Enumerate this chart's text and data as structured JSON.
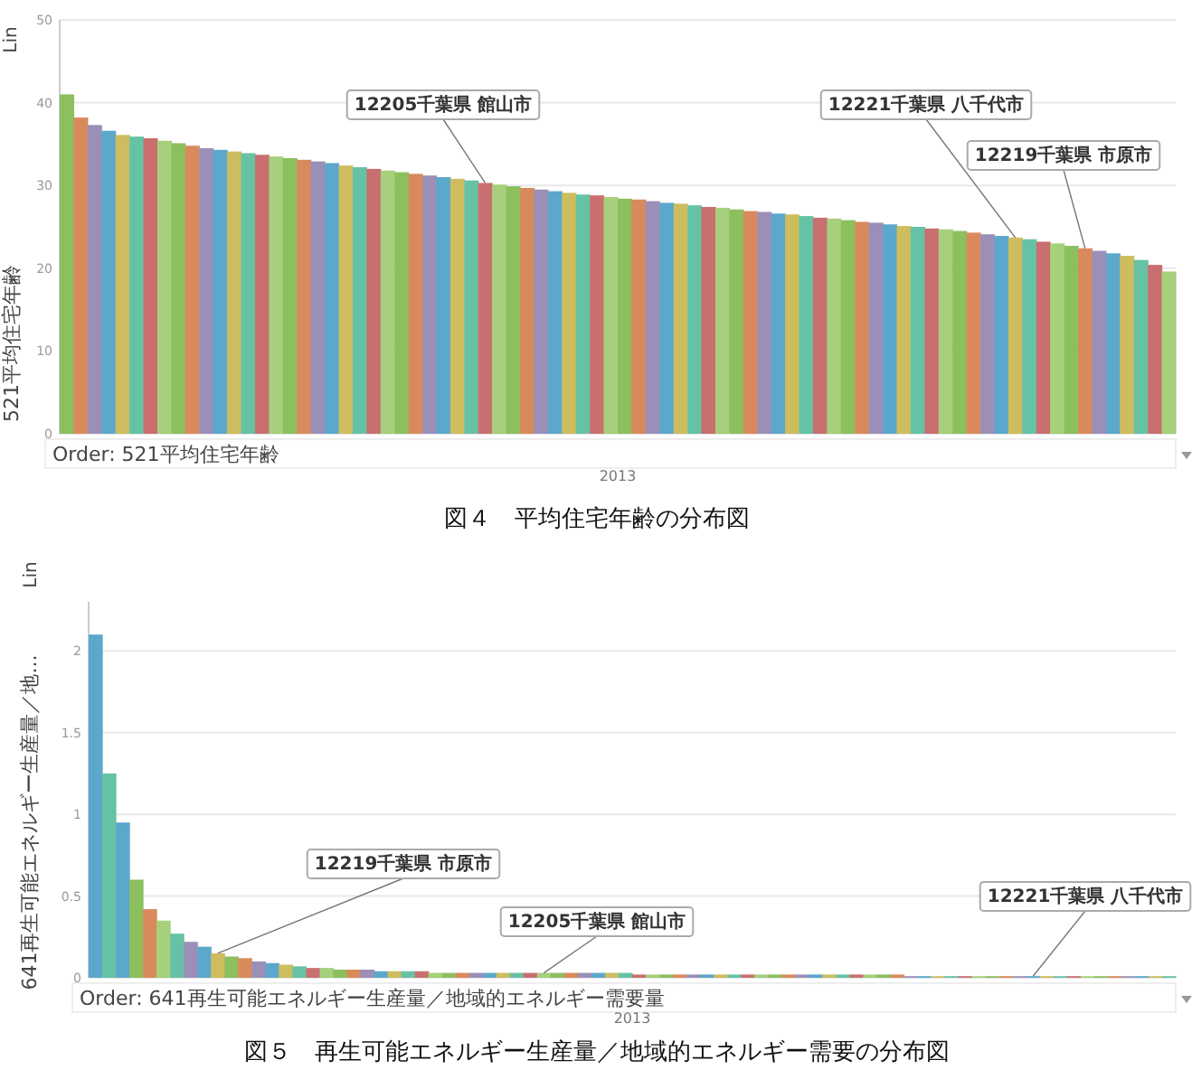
{
  "chart_data": [
    {
      "type": "bar",
      "title": "図４　平均住宅年齢の分布図",
      "xlabel": "2013",
      "ylabel": "521平均住宅年齢",
      "categories": [
        null,
        null,
        null,
        null,
        null,
        null,
        null,
        null,
        null,
        null,
        null,
        null,
        null,
        null,
        null,
        null,
        null,
        null,
        null,
        null,
        null,
        null,
        null,
        null,
        null,
        null,
        null,
        null,
        null,
        null,
        null,
        null,
        null,
        null,
        null,
        null,
        null,
        null,
        null,
        null,
        null,
        null,
        null,
        null,
        null,
        null,
        null,
        null,
        null,
        null,
        null,
        null,
        null,
        null,
        null,
        null,
        null,
        null,
        null,
        null,
        null,
        null,
        null,
        null,
        null,
        null,
        null,
        null,
        null,
        null,
        null,
        null,
        null,
        null,
        null,
        null,
        null,
        null,
        null,
        null
      ],
      "values": [
        41,
        38.2,
        37.3,
        36.6,
        36.1,
        35.9,
        35.7,
        35.4,
        35.1,
        34.8,
        34.5,
        34.3,
        34.1,
        33.9,
        33.7,
        33.5,
        33.3,
        33.1,
        32.9,
        32.7,
        32.4,
        32.2,
        32.0,
        31.8,
        31.6,
        31.4,
        31.2,
        31.0,
        30.8,
        30.6,
        30.3,
        30.1,
        29.9,
        29.7,
        29.5,
        29.3,
        29.1,
        28.9,
        28.8,
        28.6,
        28.4,
        28.3,
        28.1,
        27.9,
        27.8,
        27.6,
        27.4,
        27.3,
        27.1,
        26.9,
        26.8,
        26.6,
        26.5,
        26.3,
        26.1,
        26.0,
        25.8,
        25.6,
        25.5,
        25.3,
        25.1,
        25.0,
        24.8,
        24.7,
        24.5,
        24.3,
        24.1,
        23.9,
        23.7,
        23.5,
        23.2,
        23.0,
        22.7,
        22.4,
        22.1,
        21.8,
        21.5,
        21.0,
        20.4,
        19.6
      ],
      "colors": [
        "#8cbf5e",
        "#d98a5c",
        "#9b8fb8",
        "#5ca7cc",
        "#cdbd5e",
        "#66c2a5",
        "#c96f6f",
        "#a6d07c",
        "#8cbf5e",
        "#d98a5c",
        "#9b8fb8",
        "#5ca7cc",
        "#cdbd5e",
        "#66c2a5",
        "#c96f6f",
        "#a6d07c",
        "#8cbf5e",
        "#d98a5c",
        "#9b8fb8",
        "#5ca7cc",
        "#cdbd5e",
        "#66c2a5",
        "#c96f6f",
        "#a6d07c",
        "#8cbf5e",
        "#d98a5c",
        "#9b8fb8",
        "#5ca7cc",
        "#cdbd5e",
        "#66c2a5",
        "#c96f6f",
        "#a6d07c",
        "#8cbf5e",
        "#d98a5c",
        "#9b8fb8",
        "#5ca7cc",
        "#cdbd5e",
        "#66c2a5",
        "#c96f6f",
        "#a6d07c",
        "#8cbf5e",
        "#d98a5c",
        "#9b8fb8",
        "#5ca7cc",
        "#cdbd5e",
        "#66c2a5",
        "#c96f6f",
        "#a6d07c",
        "#8cbf5e",
        "#d98a5c",
        "#9b8fb8",
        "#5ca7cc",
        "#cdbd5e",
        "#66c2a5",
        "#c96f6f",
        "#a6d07c",
        "#8cbf5e",
        "#d98a5c",
        "#9b8fb8",
        "#5ca7cc",
        "#cdbd5e",
        "#66c2a5",
        "#c96f6f",
        "#a6d07c",
        "#8cbf5e",
        "#d98a5c",
        "#9b8fb8",
        "#5ca7cc",
        "#cdbd5e",
        "#66c2a5",
        "#c96f6f",
        "#a6d07c",
        "#8cbf5e",
        "#d98a5c",
        "#9b8fb8",
        "#5ca7cc",
        "#cdbd5e",
        "#66c2a5",
        "#c96f6f",
        "#a6d07c"
      ],
      "ylim": [
        0,
        50
      ],
      "yticks": [
        0,
        10,
        20,
        30,
        40,
        50
      ],
      "grid": "y",
      "annotations": [
        "12205千葉県 館山市",
        "12221千葉県 八千代市",
        "12219千葉県 市原市",
        "Order: 521平均住宅年齢",
        "Lin"
      ]
    },
    {
      "type": "bar",
      "title": "図５　再生可能エネルギー生産量／地域的エネルギー需要の分布図",
      "xlabel": "2013",
      "ylabel": "641再生可能エネルギー生産量／地...",
      "categories": [
        null,
        null,
        null,
        null,
        null,
        null,
        null,
        null,
        null,
        null,
        null,
        null,
        null,
        null,
        null,
        null,
        null,
        null,
        null,
        null,
        null,
        null,
        null,
        null,
        null,
        null,
        null,
        null,
        null,
        null,
        null,
        null,
        null,
        null,
        null,
        null,
        null,
        null,
        null,
        null,
        null,
        null,
        null,
        null,
        null,
        null,
        null,
        null,
        null,
        null,
        null,
        null,
        null,
        null,
        null,
        null,
        null,
        null,
        null,
        null,
        null,
        null,
        null,
        null,
        null,
        null,
        null,
        null,
        null,
        null,
        null,
        null,
        null,
        null,
        null,
        null,
        null,
        null,
        null,
        null
      ],
      "values": [
        2.1,
        1.25,
        0.95,
        0.6,
        0.42,
        0.35,
        0.27,
        0.22,
        0.19,
        0.15,
        0.13,
        0.12,
        0.1,
        0.09,
        0.08,
        0.07,
        0.06,
        0.06,
        0.05,
        0.05,
        0.05,
        0.04,
        0.04,
        0.04,
        0.04,
        0.03,
        0.03,
        0.03,
        0.03,
        0.03,
        0.03,
        0.03,
        0.03,
        0.03,
        0.03,
        0.03,
        0.03,
        0.03,
        0.03,
        0.03,
        0.02,
        0.02,
        0.02,
        0.02,
        0.02,
        0.02,
        0.02,
        0.02,
        0.02,
        0.02,
        0.02,
        0.02,
        0.02,
        0.02,
        0.02,
        0.02,
        0.02,
        0.02,
        0.02,
        0.02,
        0.01,
        0.01,
        0.01,
        0.01,
        0.01,
        0.01,
        0.01,
        0.01,
        0.01,
        0.01,
        0.01,
        0.01,
        0.01,
        0.01,
        0.01,
        0.01,
        0.01,
        0.01,
        0.01,
        0.01
      ],
      "colors": [
        "#5ca7cc",
        "#66c2a5",
        "#5ca7cc",
        "#8cbf5e",
        "#d98a5c",
        "#a6d07c",
        "#66c2a5",
        "#9b8fb8",
        "#5ca7cc",
        "#cdbd5e",
        "#8cbf5e",
        "#d98a5c",
        "#9b8fb8",
        "#5ca7cc",
        "#cdbd5e",
        "#66c2a5",
        "#c96f6f",
        "#a6d07c",
        "#8cbf5e",
        "#d98a5c",
        "#9b8fb8",
        "#5ca7cc",
        "#cdbd5e",
        "#66c2a5",
        "#c96f6f",
        "#a6d07c",
        "#8cbf5e",
        "#d98a5c",
        "#9b8fb8",
        "#5ca7cc",
        "#cdbd5e",
        "#66c2a5",
        "#c96f6f",
        "#a6d07c",
        "#8cbf5e",
        "#d98a5c",
        "#9b8fb8",
        "#5ca7cc",
        "#cdbd5e",
        "#66c2a5",
        "#c96f6f",
        "#a6d07c",
        "#8cbf5e",
        "#d98a5c",
        "#9b8fb8",
        "#5ca7cc",
        "#cdbd5e",
        "#66c2a5",
        "#c96f6f",
        "#a6d07c",
        "#8cbf5e",
        "#d98a5c",
        "#9b8fb8",
        "#5ca7cc",
        "#cdbd5e",
        "#66c2a5",
        "#c96f6f",
        "#a6d07c",
        "#8cbf5e",
        "#d98a5c",
        "#9b8fb8",
        "#5ca7cc",
        "#cdbd5e",
        "#66c2a5",
        "#c96f6f",
        "#a6d07c",
        "#8cbf5e",
        "#d98a5c",
        "#9b8fb8",
        "#5ca7cc",
        "#cdbd5e",
        "#66c2a5",
        "#c96f6f",
        "#a6d07c",
        "#8cbf5e",
        "#d98a5c",
        "#9b8fb8",
        "#5ca7cc",
        "#cdbd5e",
        "#66c2a5"
      ],
      "ylim": [
        0,
        2.3
      ],
      "yticks": [
        0,
        0.5,
        1,
        1.5,
        2
      ],
      "grid": "y",
      "annotations": [
        "12219千葉県 市原市",
        "12205千葉県 館山市",
        "12221千葉県 八千代市",
        "Order: 641再生可能エネルギー生産量／地域的エネルギー需要量",
        "Lin"
      ]
    }
  ]
}
